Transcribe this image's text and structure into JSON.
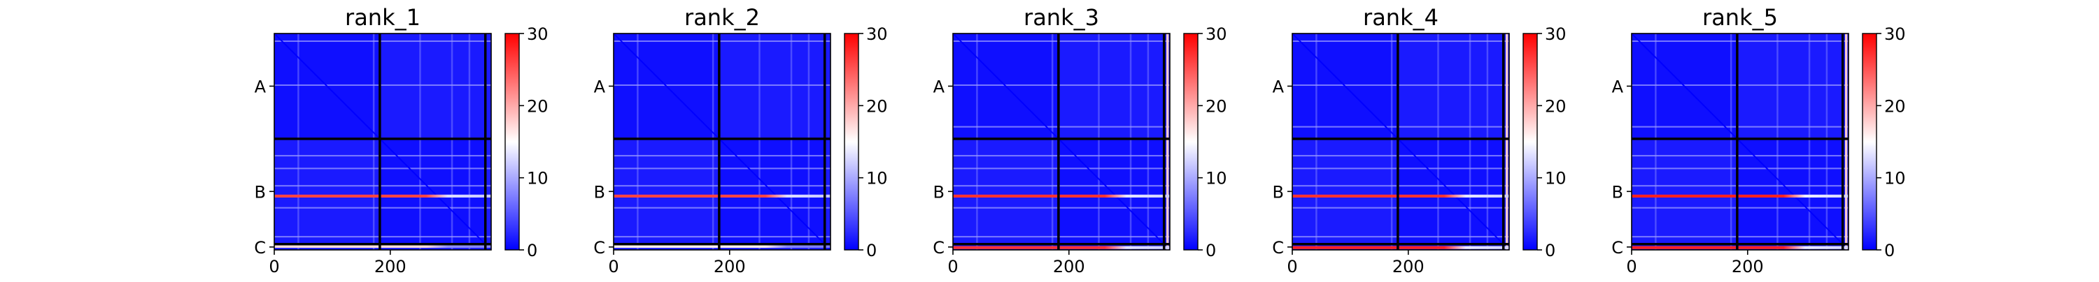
{
  "chart_data": [
    {
      "type": "heatmap",
      "title": "rank_1",
      "xticks": [
        0,
        200
      ],
      "xlim": [
        0,
        374
      ],
      "yticks": [
        "A",
        "B",
        "C"
      ],
      "chain_boundaries": [
        182,
        364
      ],
      "colorbar": {
        "ticks": [
          0,
          10,
          20,
          30
        ],
        "range": [
          0,
          30
        ],
        "colors": [
          "#0000ff",
          "#ffffff",
          "#ff0000"
        ]
      },
      "hot_rows": [
        {
          "residue": 281,
          "value": 26
        },
        {
          "residue": 368,
          "value": 17
        }
      ],
      "hot_columns": [],
      "light_rows": [
        12,
        88,
        210,
        232,
        262,
        300,
        350
      ],
      "light_cols": [
        40,
        170,
        250,
        305,
        335
      ]
    },
    {
      "type": "heatmap",
      "title": "rank_2",
      "xticks": [
        0,
        200
      ],
      "xlim": [
        0,
        374
      ],
      "yticks": [
        "A",
        "B",
        "C"
      ],
      "chain_boundaries": [
        182,
        364
      ],
      "colorbar": {
        "ticks": [
          0,
          10,
          20,
          30
        ],
        "range": [
          0,
          30
        ],
        "colors": [
          "#0000ff",
          "#ffffff",
          "#ff0000"
        ]
      },
      "hot_rows": [
        {
          "residue": 281,
          "value": 26
        },
        {
          "residue": 368,
          "value": 16
        }
      ],
      "hot_columns": [],
      "light_rows": [
        12,
        88,
        210,
        232,
        262,
        300,
        350
      ],
      "light_cols": [
        40,
        170,
        250,
        305,
        335
      ]
    },
    {
      "type": "heatmap",
      "title": "rank_3",
      "xticks": [
        0,
        200
      ],
      "xlim": [
        0,
        374
      ],
      "yticks": [
        "A",
        "B",
        "C"
      ],
      "chain_boundaries": [
        182,
        364
      ],
      "colorbar": {
        "ticks": [
          0,
          10,
          20,
          30
        ],
        "range": [
          0,
          30
        ],
        "colors": [
          "#0000ff",
          "#ffffff",
          "#ff0000"
        ]
      },
      "hot_rows": [
        {
          "residue": 281,
          "value": 27
        },
        {
          "residue": 370,
          "value": 27
        }
      ],
      "hot_columns": [
        {
          "residue": 370,
          "value": 18
        }
      ],
      "light_rows": [
        12,
        88,
        160,
        210,
        232,
        262,
        300,
        350
      ],
      "light_cols": [
        40,
        170,
        250,
        305,
        335
      ]
    },
    {
      "type": "heatmap",
      "title": "rank_4",
      "xticks": [
        0,
        200
      ],
      "xlim": [
        0,
        374
      ],
      "yticks": [
        "A",
        "B",
        "C"
      ],
      "chain_boundaries": [
        182,
        364
      ],
      "colorbar": {
        "ticks": [
          0,
          10,
          20,
          30
        ],
        "range": [
          0,
          30
        ],
        "colors": [
          "#0000ff",
          "#ffffff",
          "#ff0000"
        ]
      },
      "hot_rows": [
        {
          "residue": 281,
          "value": 27
        },
        {
          "residue": 370,
          "value": 28
        }
      ],
      "hot_columns": [
        {
          "residue": 370,
          "value": 18
        }
      ],
      "light_rows": [
        12,
        88,
        160,
        210,
        232,
        262,
        300,
        350
      ],
      "light_cols": [
        40,
        170,
        250,
        305,
        335
      ]
    },
    {
      "type": "heatmap",
      "title": "rank_5",
      "xticks": [
        0,
        200
      ],
      "xlim": [
        0,
        374
      ],
      "yticks": [
        "A",
        "B",
        "C"
      ],
      "chain_boundaries": [
        182,
        364
      ],
      "colorbar": {
        "ticks": [
          0,
          10,
          20,
          30
        ],
        "range": [
          0,
          30
        ],
        "colors": [
          "#0000ff",
          "#ffffff",
          "#ff0000"
        ]
      },
      "hot_rows": [
        {
          "residue": 281,
          "value": 28
        },
        {
          "residue": 370,
          "value": 28
        }
      ],
      "hot_columns": [
        {
          "residue": 370,
          "value": 18
        }
      ],
      "light_rows": [
        12,
        88,
        160,
        210,
        232,
        262,
        300,
        350
      ],
      "light_cols": [
        40,
        170,
        250,
        305,
        335
      ]
    }
  ]
}
